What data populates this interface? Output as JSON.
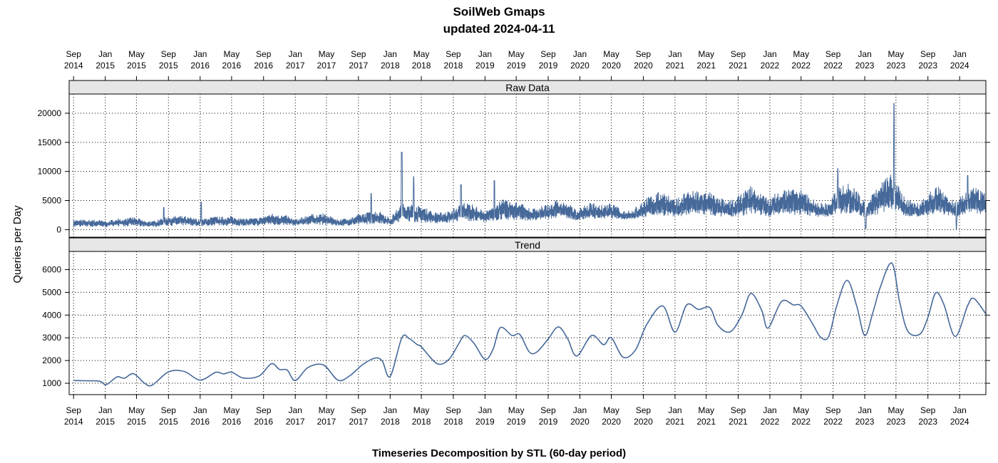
{
  "chart_data": {
    "type": "line",
    "title": "SoilWeb Gmaps",
    "subtitle": "updated 2024-04-11",
    "xlabel": "Timeseries Decomposition by STL (60-day period)",
    "ylabel": "Queries per Day",
    "xlim": [
      "2014-08-15",
      "2024-04-11"
    ],
    "x_ticks": [
      {
        "date": "2014-09-01",
        "label": [
          "Sep",
          "2014"
        ]
      },
      {
        "date": "2015-01-01",
        "label": [
          "Jan",
          "2015"
        ]
      },
      {
        "date": "2015-05-01",
        "label": [
          "May",
          "2015"
        ]
      },
      {
        "date": "2015-09-01",
        "label": [
          "Sep",
          "2015"
        ]
      },
      {
        "date": "2016-01-01",
        "label": [
          "Jan",
          "2016"
        ]
      },
      {
        "date": "2016-05-01",
        "label": [
          "May",
          "2016"
        ]
      },
      {
        "date": "2016-09-01",
        "label": [
          "Sep",
          "2016"
        ]
      },
      {
        "date": "2017-01-01",
        "label": [
          "Jan",
          "2017"
        ]
      },
      {
        "date": "2017-05-01",
        "label": [
          "May",
          "2017"
        ]
      },
      {
        "date": "2017-09-01",
        "label": [
          "Sep",
          "2017"
        ]
      },
      {
        "date": "2018-01-01",
        "label": [
          "Jan",
          "2018"
        ]
      },
      {
        "date": "2018-05-01",
        "label": [
          "May",
          "2018"
        ]
      },
      {
        "date": "2018-09-01",
        "label": [
          "Sep",
          "2018"
        ]
      },
      {
        "date": "2019-01-01",
        "label": [
          "Jan",
          "2019"
        ]
      },
      {
        "date": "2019-05-01",
        "label": [
          "May",
          "2019"
        ]
      },
      {
        "date": "2019-09-01",
        "label": [
          "Sep",
          "2019"
        ]
      },
      {
        "date": "2020-01-01",
        "label": [
          "Jan",
          "2020"
        ]
      },
      {
        "date": "2020-05-01",
        "label": [
          "May",
          "2020"
        ]
      },
      {
        "date": "2020-09-01",
        "label": [
          "Sep",
          "2020"
        ]
      },
      {
        "date": "2021-01-01",
        "label": [
          "Jan",
          "2021"
        ]
      },
      {
        "date": "2021-05-01",
        "label": [
          "May",
          "2021"
        ]
      },
      {
        "date": "2021-09-01",
        "label": [
          "Sep",
          "2021"
        ]
      },
      {
        "date": "2022-01-01",
        "label": [
          "Jan",
          "2022"
        ]
      },
      {
        "date": "2022-05-01",
        "label": [
          "May",
          "2022"
        ]
      },
      {
        "date": "2022-09-01",
        "label": [
          "Sep",
          "2022"
        ]
      },
      {
        "date": "2023-01-01",
        "label": [
          "Jan",
          "2023"
        ]
      },
      {
        "date": "2023-05-01",
        "label": [
          "May",
          "2023"
        ]
      },
      {
        "date": "2023-09-01",
        "label": [
          "Sep",
          "2023"
        ]
      },
      {
        "date": "2024-01-01",
        "label": [
          "Jan",
          "2024"
        ]
      }
    ],
    "line_color": "#46699a",
    "strip_color": "#e6e6e6",
    "grid": true,
    "panels": [
      {
        "name": "Raw Data",
        "ylim": [
          -1300,
          23300
        ],
        "y_ticks": [
          0,
          5000,
          10000,
          15000,
          20000
        ],
        "series_note": "daily values; envelope approximated from the plot",
        "spikes": [
          {
            "date": "2015-08-14",
            "value": 3800
          },
          {
            "date": "2016-01-05",
            "value": 4700
          },
          {
            "date": "2017-10-20",
            "value": 6200
          },
          {
            "date": "2018-02-15",
            "value": 13300
          },
          {
            "date": "2018-04-02",
            "value": 9100
          },
          {
            "date": "2018-10-01",
            "value": 7700
          },
          {
            "date": "2019-02-06",
            "value": 8400
          },
          {
            "date": "2022-09-20",
            "value": 10500
          },
          {
            "date": "2023-04-24",
            "value": 21700
          },
          {
            "date": "2024-02-01",
            "value": 9300
          }
        ],
        "envelope_low": [
          {
            "date": "2014-09-01",
            "value": 200
          },
          {
            "date": "2016-01-01",
            "value": 400
          },
          {
            "date": "2017-09-01",
            "value": 500
          },
          {
            "date": "2018-09-01",
            "value": 900
          },
          {
            "date": "2019-09-01",
            "value": 1300
          },
          {
            "date": "2020-09-01",
            "value": 1700
          },
          {
            "date": "2022-01-01",
            "value": 1800
          },
          {
            "date": "2023-06-01",
            "value": 1900
          },
          {
            "date": "2024-04-11",
            "value": 1900
          }
        ]
      },
      {
        "name": "Trend",
        "ylim": [
          500,
          6800
        ],
        "y_ticks": [
          1000,
          2000,
          3000,
          4000,
          5000,
          6000
        ],
        "values": [
          {
            "date": "2014-09-01",
            "value": 1120
          },
          {
            "date": "2014-10-15",
            "value": 1110
          },
          {
            "date": "2014-12-10",
            "value": 1090
          },
          {
            "date": "2015-01-05",
            "value": 940
          },
          {
            "date": "2015-02-15",
            "value": 1280
          },
          {
            "date": "2015-03-15",
            "value": 1220
          },
          {
            "date": "2015-04-20",
            "value": 1420
          },
          {
            "date": "2015-06-01",
            "value": 1000
          },
          {
            "date": "2015-07-01",
            "value": 920
          },
          {
            "date": "2015-09-01",
            "value": 1500
          },
          {
            "date": "2015-11-01",
            "value": 1520
          },
          {
            "date": "2016-01-01",
            "value": 1140
          },
          {
            "date": "2016-03-01",
            "value": 1480
          },
          {
            "date": "2016-04-01",
            "value": 1410
          },
          {
            "date": "2016-05-01",
            "value": 1490
          },
          {
            "date": "2016-06-15",
            "value": 1230
          },
          {
            "date": "2016-08-15",
            "value": 1320
          },
          {
            "date": "2016-10-01",
            "value": 1860
          },
          {
            "date": "2016-11-01",
            "value": 1610
          },
          {
            "date": "2016-12-01",
            "value": 1580
          },
          {
            "date": "2017-01-01",
            "value": 1120
          },
          {
            "date": "2017-02-20",
            "value": 1700
          },
          {
            "date": "2017-04-20",
            "value": 1800
          },
          {
            "date": "2017-06-15",
            "value": 1130
          },
          {
            "date": "2017-08-01",
            "value": 1350
          },
          {
            "date": "2017-09-15",
            "value": 1800
          },
          {
            "date": "2017-11-01",
            "value": 2100
          },
          {
            "date": "2017-12-01",
            "value": 1990
          },
          {
            "date": "2018-01-01",
            "value": 1300
          },
          {
            "date": "2018-02-15",
            "value": 3000
          },
          {
            "date": "2018-03-15",
            "value": 2970
          },
          {
            "date": "2018-04-15",
            "value": 2700
          },
          {
            "date": "2018-05-01",
            "value": 2600
          },
          {
            "date": "2018-07-01",
            "value": 1860
          },
          {
            "date": "2018-08-15",
            "value": 2050
          },
          {
            "date": "2018-09-20",
            "value": 2700
          },
          {
            "date": "2018-10-15",
            "value": 3100
          },
          {
            "date": "2018-11-20",
            "value": 2750
          },
          {
            "date": "2019-01-01",
            "value": 2050
          },
          {
            "date": "2019-02-01",
            "value": 2500
          },
          {
            "date": "2019-03-01",
            "value": 3450
          },
          {
            "date": "2019-04-15",
            "value": 3100
          },
          {
            "date": "2019-05-15",
            "value": 3150
          },
          {
            "date": "2019-06-20",
            "value": 2380
          },
          {
            "date": "2019-07-20",
            "value": 2380
          },
          {
            "date": "2019-09-01",
            "value": 2950
          },
          {
            "date": "2019-10-10",
            "value": 3480
          },
          {
            "date": "2019-11-15",
            "value": 2960
          },
          {
            "date": "2019-12-20",
            "value": 2200
          },
          {
            "date": "2020-02-15",
            "value": 3100
          },
          {
            "date": "2020-04-01",
            "value": 2700
          },
          {
            "date": "2020-05-01",
            "value": 3000
          },
          {
            "date": "2020-06-15",
            "value": 2150
          },
          {
            "date": "2020-08-01",
            "value": 2450
          },
          {
            "date": "2020-09-15",
            "value": 3600
          },
          {
            "date": "2020-11-15",
            "value": 4400
          },
          {
            "date": "2021-01-01",
            "value": 3250
          },
          {
            "date": "2021-02-15",
            "value": 4450
          },
          {
            "date": "2021-04-01",
            "value": 4250
          },
          {
            "date": "2021-05-15",
            "value": 4330
          },
          {
            "date": "2021-06-15",
            "value": 3550
          },
          {
            "date": "2021-08-01",
            "value": 3260
          },
          {
            "date": "2021-09-15",
            "value": 4000
          },
          {
            "date": "2021-10-20",
            "value": 4950
          },
          {
            "date": "2021-12-01",
            "value": 4200
          },
          {
            "date": "2021-12-25",
            "value": 3430
          },
          {
            "date": "2022-02-15",
            "value": 4600
          },
          {
            "date": "2022-04-01",
            "value": 4450
          },
          {
            "date": "2022-05-01",
            "value": 4400
          },
          {
            "date": "2022-06-15",
            "value": 3600
          },
          {
            "date": "2022-07-15",
            "value": 3030
          },
          {
            "date": "2022-08-15",
            "value": 3050
          },
          {
            "date": "2022-09-15",
            "value": 4400
          },
          {
            "date": "2022-10-25",
            "value": 5530
          },
          {
            "date": "2022-12-01",
            "value": 4400
          },
          {
            "date": "2023-01-01",
            "value": 3100
          },
          {
            "date": "2023-02-01",
            "value": 4100
          },
          {
            "date": "2023-03-01",
            "value": 5200
          },
          {
            "date": "2023-04-15",
            "value": 6290
          },
          {
            "date": "2023-05-15",
            "value": 4600
          },
          {
            "date": "2023-06-15",
            "value": 3300
          },
          {
            "date": "2023-08-01",
            "value": 3160
          },
          {
            "date": "2023-09-01",
            "value": 3900
          },
          {
            "date": "2023-10-01",
            "value": 4980
          },
          {
            "date": "2023-11-01",
            "value": 4480
          },
          {
            "date": "2023-12-15",
            "value": 3060
          },
          {
            "date": "2024-02-01",
            "value": 4420
          },
          {
            "date": "2024-02-25",
            "value": 4730
          },
          {
            "date": "2024-04-11",
            "value": 4050
          }
        ]
      }
    ]
  }
}
